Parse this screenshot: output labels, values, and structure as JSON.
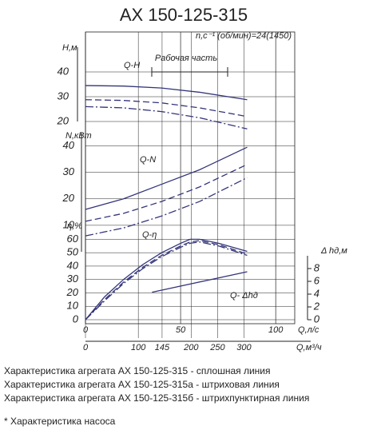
{
  "chart_data": {
    "type": "pump-curve",
    "title": "АХ 150-125-315",
    "subtitle": "n,c⁻¹ (об/мин)=24(1450)",
    "annotation": "Рабочая часть",
    "x_label": "Q,л/с",
    "xlim": [
      0,
      110
    ],
    "xticks": [
      0,
      50,
      100
    ],
    "x2_label": "Q,м³/ч",
    "x2lim": [
      0,
      396
    ],
    "x2ticks": [
      0,
      100,
      145,
      200,
      250,
      300
    ],
    "y_axes": [
      {
        "label": "H,м",
        "lim": [
          20,
          50
        ],
        "ticks": [
          20,
          30,
          40
        ]
      },
      {
        "label": "N,кВт",
        "lim": [
          0,
          45
        ],
        "ticks": [
          10,
          20,
          30,
          40
        ]
      },
      {
        "label": "η,%",
        "lim": [
          0,
          65
        ],
        "ticks": [
          0,
          10,
          20,
          30,
          40,
          50,
          60
        ]
      },
      {
        "label": "Δ hд,м",
        "lim": [
          0,
          10
        ],
        "ticks": [
          0,
          2,
          4,
          6,
          8
        ]
      }
    ],
    "curve_labels": [
      "Q-H",
      "Q-N",
      "Q-η",
      "Q- Δhд"
    ],
    "series": [
      {
        "axis": 0,
        "style": "solid",
        "color": "#34357a",
        "x": [
          0,
          20,
          40,
          60,
          85
        ],
        "values": [
          34.5,
          34.3,
          33.5,
          31.8,
          28.8
        ]
      },
      {
        "axis": 0,
        "style": "dashed",
        "color": "#34357a",
        "x": [
          0,
          20,
          40,
          60,
          85
        ],
        "values": [
          28.8,
          28.5,
          27.5,
          25.5,
          22
        ]
      },
      {
        "axis": 0,
        "style": "dashdot",
        "color": "#34357a",
        "x": [
          0,
          20,
          40,
          60,
          85
        ],
        "values": [
          26,
          25.5,
          24,
          21.5,
          17
        ]
      },
      {
        "axis": 1,
        "style": "solid",
        "color": "#34357a",
        "x": [
          0,
          20,
          40,
          60,
          85
        ],
        "values": [
          16,
          20,
          25.5,
          31,
          39.5
        ]
      },
      {
        "axis": 1,
        "style": "dashed",
        "color": "#34357a",
        "x": [
          0,
          20,
          40,
          60,
          85
        ],
        "values": [
          11.5,
          14.5,
          19,
          24.5,
          33
        ]
      },
      {
        "axis": 1,
        "style": "dashdot",
        "color": "#34357a",
        "x": [
          0,
          20,
          40,
          60,
          85
        ],
        "values": [
          6,
          9,
          13.5,
          19,
          28
        ]
      },
      {
        "axis": 2,
        "style": "solid",
        "color": "#34357a",
        "x": [
          0,
          10,
          20,
          30,
          40,
          50,
          55,
          60,
          70,
          85
        ],
        "values": [
          0,
          17,
          30,
          41,
          50,
          57,
          60,
          60,
          57,
          51
        ]
      },
      {
        "axis": 2,
        "style": "dashed",
        "color": "#34357a",
        "x": [
          0,
          10,
          20,
          30,
          40,
          50,
          55,
          60,
          70,
          85
        ],
        "values": [
          0,
          15,
          28,
          39,
          48,
          55,
          58,
          59,
          56,
          49
        ]
      },
      {
        "axis": 2,
        "style": "dashdot",
        "color": "#34357a",
        "x": [
          0,
          10,
          20,
          30,
          40,
          50,
          55,
          60,
          70,
          85
        ],
        "values": [
          0,
          14,
          27,
          38,
          47,
          54,
          57,
          58,
          55,
          48
        ]
      },
      {
        "axis": 3,
        "style": "solid",
        "color": "#34357a",
        "x": [
          35,
          85
        ],
        "values": [
          4.3,
          7.5
        ]
      }
    ]
  },
  "notes": [
    "Характеристика агрегата АХ 150-125-315 - сплошная линия",
    "Характеристика агрегата АХ 150-125-315а - штриховая линия",
    "Характеристика агрегата АХ 150-125-315б - штрихпунктирная линия"
  ],
  "footnote": "* Характеристика насоса"
}
